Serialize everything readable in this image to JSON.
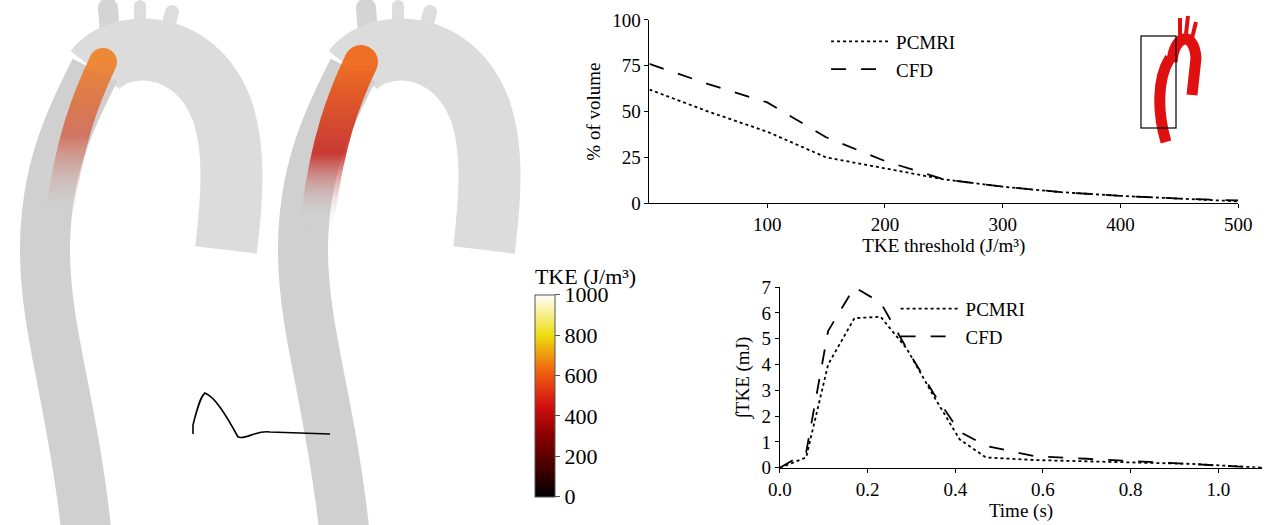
{
  "chart_data": [
    {
      "type": "line",
      "x": [
        0,
        50,
        100,
        150,
        200,
        250,
        300,
        350,
        400,
        450,
        500
      ],
      "series": [
        {
          "name": "PCMRI",
          "color": "#000000",
          "line_style": "dotted",
          "values": [
            62,
            50,
            39,
            25,
            19,
            13,
            9,
            6,
            4,
            2.5,
            1
          ]
        },
        {
          "name": "CFD",
          "color": "#000000",
          "line_style": "dashed",
          "values": [
            76,
            65,
            55,
            36,
            23,
            13,
            9,
            6,
            4,
            2.5,
            1.5
          ]
        }
      ],
      "xlabel": "TKE threshold (J/m³)",
      "ylabel": "% of volume",
      "xlim": [
        0,
        500
      ],
      "xticks": [
        100,
        200,
        300,
        400,
        500
      ],
      "ylim": [
        0,
        100
      ],
      "yticks": [
        0,
        25,
        50,
        75,
        100
      ],
      "grid": false,
      "legend": "top"
    },
    {
      "type": "line",
      "x": [
        0,
        0.06,
        0.11,
        0.17,
        0.23,
        0.29,
        0.35,
        0.41,
        0.47,
        0.58,
        0.7,
        0.82,
        0.94,
        1.05,
        1.1
      ],
      "series": [
        {
          "name": "PCMRI",
          "color": "#000000",
          "line_style": "dotted",
          "values": [
            0,
            0.4,
            4.0,
            5.8,
            5.85,
            4.6,
            2.8,
            1.1,
            0.4,
            0.3,
            0.25,
            0.2,
            0.15,
            0.05,
            0
          ]
        },
        {
          "name": "CFD",
          "color": "#000000",
          "line_style": "dashed",
          "values": [
            0,
            0.6,
            5.3,
            7.0,
            6.4,
            4.6,
            2.9,
            1.4,
            0.85,
            0.45,
            0.35,
            0.25,
            0.15,
            0.05,
            0
          ]
        }
      ],
      "xlabel": "Time (s)",
      "ylabel": "∫TKE (mJ)",
      "xlim": [
        0,
        1.1
      ],
      "xticks": [
        {
          "value": 0,
          "label": "0.0"
        },
        0.2,
        0.4,
        0.6,
        0.8,
        {
          "value": 1,
          "label": "1.0"
        }
      ],
      "ylim": [
        0,
        7
      ],
      "yticks": [
        0,
        1,
        2,
        3,
        4,
        5,
        6,
        7
      ],
      "grid": false,
      "legend": "top"
    },
    {
      "type": "colorbar",
      "title": "TKE (J/m³)",
      "ylim": [
        0,
        1000
      ],
      "yticks": [
        0,
        200,
        400,
        600,
        800,
        1000
      ]
    }
  ]
}
